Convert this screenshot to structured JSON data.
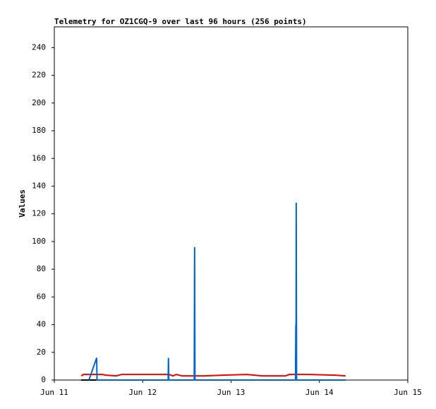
{
  "chart_data": {
    "type": "line",
    "title": "Telemetry for OZ1CGQ-9 over last 96 hours (256 points)",
    "y_label": "Values",
    "xlim": [
      0,
      96
    ],
    "xticks": [
      {
        "value": 0,
        "label": "Jun 11"
      },
      {
        "value": 24,
        "label": "Jun 12"
      },
      {
        "value": 48,
        "label": "Jun 13"
      },
      {
        "value": 72,
        "label": "Jun 14"
      },
      {
        "value": 96,
        "label": "Jun 15"
      }
    ],
    "ylim": [
      0,
      255
    ],
    "yticks": [
      0,
      20,
      40,
      60,
      80,
      100,
      120,
      140,
      160,
      180,
      200,
      220,
      240
    ],
    "series": [
      {
        "color": "#000000",
        "x": [
          7.3,
          79.1
        ],
        "values": [
          0,
          0
        ]
      },
      {
        "color": "#ee0000",
        "x": [
          7.3,
          7.9,
          13.0,
          14.0,
          16.9,
          18.2,
          31.2,
          32.2,
          33.1,
          34.7,
          40.8,
          45.6,
          52.3,
          56.5,
          62.8,
          63.8,
          65.7,
          69.2,
          76.3,
          79.1
        ],
        "values": [
          3,
          4,
          4,
          3.5,
          3,
          4,
          4,
          3,
          4,
          3,
          3,
          3.5,
          4,
          3,
          3,
          4,
          4,
          4,
          3.5,
          3
        ]
      },
      {
        "color": "#0066cc",
        "x": [
          9.4,
          11.5,
          11.6,
          30.9,
          31.0,
          31.1,
          38.0,
          38.1,
          38.2,
          65.5,
          65.6,
          65.65,
          65.7,
          65.8,
          79.1
        ],
        "values": [
          0,
          16,
          0,
          0,
          16,
          0,
          0,
          96,
          0,
          0,
          40,
          0,
          128,
          0,
          0
        ]
      }
    ]
  }
}
